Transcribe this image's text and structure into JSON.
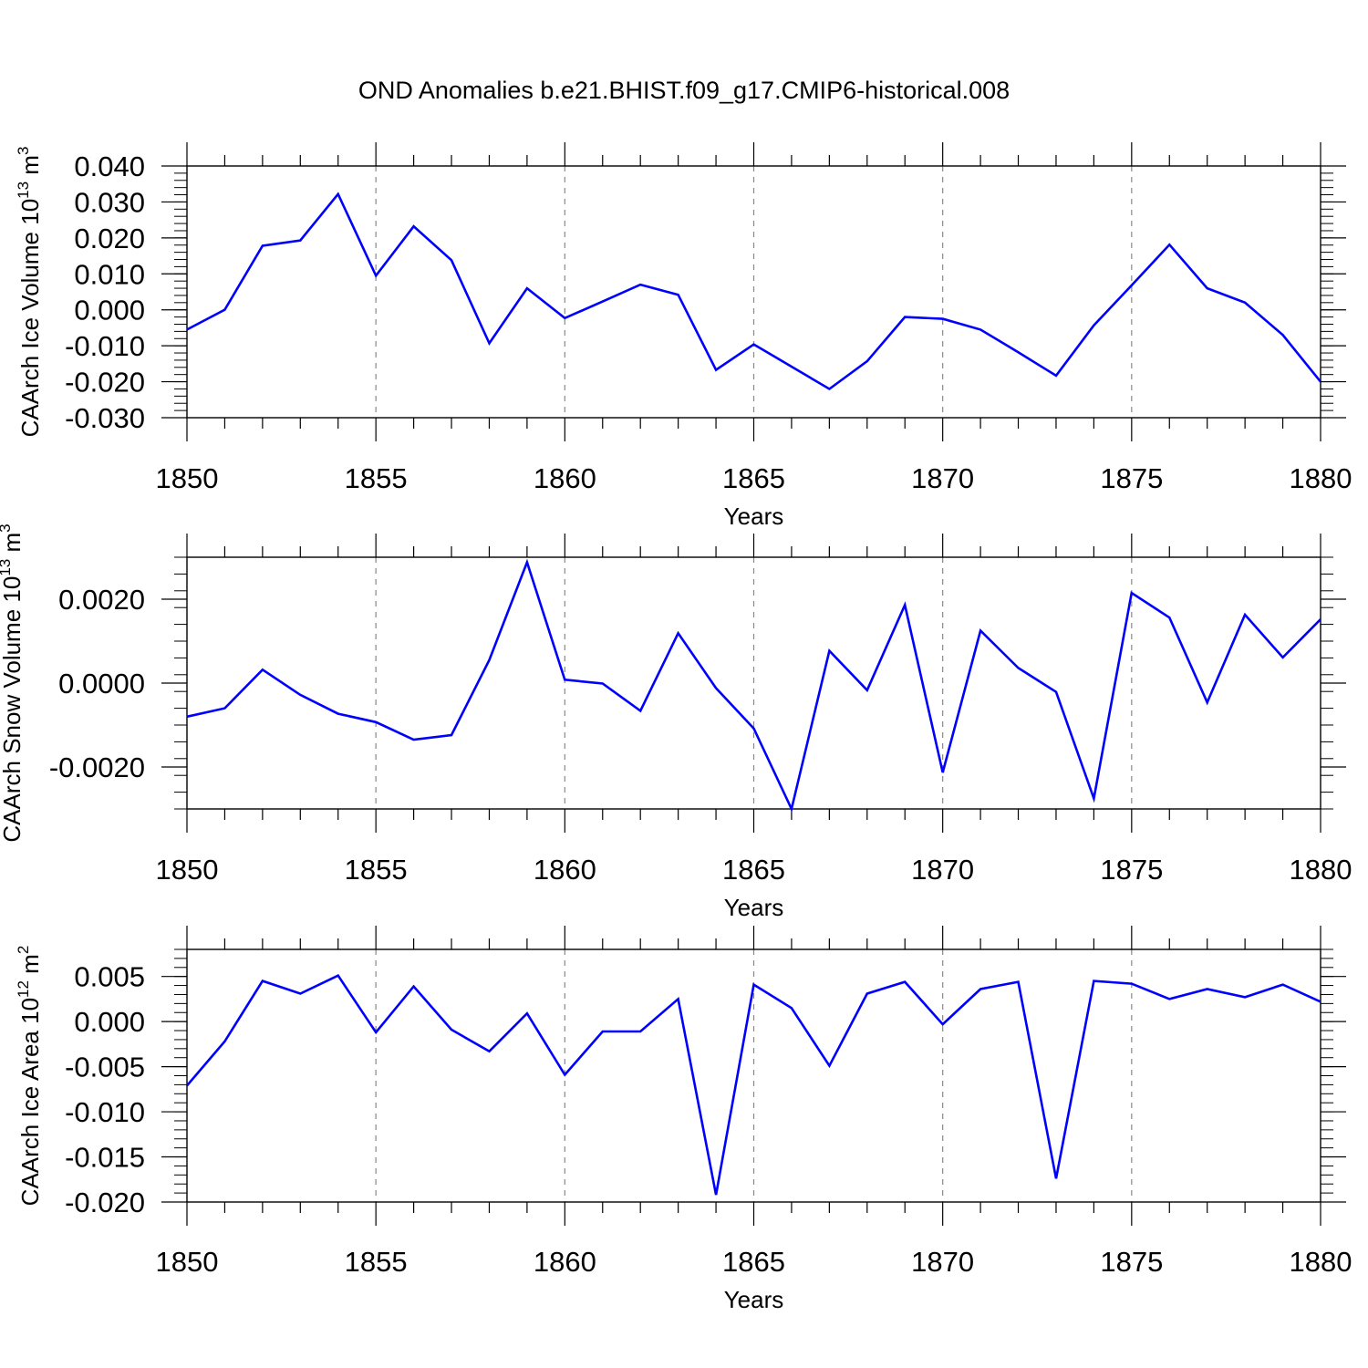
{
  "title": "OND Anomalies b.e21.BHIST.f09_g17.CMIP6-historical.008",
  "colors": {
    "series": "#0000ff",
    "axis": "#000000",
    "grid": "#888888"
  },
  "chart_data": [
    {
      "type": "line",
      "ylabel": {
        "text": "CAArch Ice Volume 10",
        "exp": "13",
        "unit": " m",
        "unit_exp": "3"
      },
      "xlabel": "Years",
      "xlim": [
        1850,
        1880
      ],
      "ylim": [
        -0.03,
        0.04
      ],
      "y_ticks": [
        -0.03,
        -0.02,
        -0.01,
        0.0,
        0.01,
        0.02,
        0.03,
        0.04
      ],
      "y_tick_labels": [
        "-0.030",
        "-0.020",
        "-0.010",
        "0.000",
        "0.010",
        "0.020",
        "0.030",
        "0.040"
      ],
      "x_ticks": [
        1850,
        1855,
        1860,
        1865,
        1870,
        1875,
        1880
      ],
      "x_tick_labels": [
        "1850",
        "1855",
        "1860",
        "1865",
        "1870",
        "1875",
        "1880"
      ],
      "x": [
        1850,
        1851,
        1852,
        1853,
        1854,
        1855,
        1856,
        1857,
        1858,
        1859,
        1860,
        1861,
        1862,
        1863,
        1864,
        1865,
        1866,
        1867,
        1868,
        1869,
        1870,
        1871,
        1872,
        1873,
        1874,
        1875,
        1876,
        1877,
        1878,
        1879,
        1880
      ],
      "y": [
        -0.0055,
        0.0,
        0.0178,
        0.0193,
        0.0322,
        0.0095,
        0.0232,
        0.0138,
        -0.0093,
        0.006,
        -0.0023,
        0.0023,
        0.007,
        0.0042,
        -0.0167,
        -0.0096,
        -0.0158,
        -0.022,
        -0.0143,
        -0.002,
        -0.0025,
        -0.0055,
        -0.0118,
        -0.0183,
        -0.0043,
        0.0068,
        0.0181,
        0.006,
        0.002,
        -0.007,
        -0.02
      ]
    },
    {
      "type": "line",
      "ylabel": {
        "text": "CAArch Snow Volume 10",
        "exp": "13",
        "unit": " m",
        "unit_exp": "3"
      },
      "xlabel": "Years",
      "xlim": [
        1850,
        1880
      ],
      "ylim": [
        -0.003,
        0.003
      ],
      "y_ticks": [
        -0.002,
        0.0,
        0.002
      ],
      "y_tick_labels": [
        "-0.0020",
        "0.0000",
        "0.0020"
      ],
      "x_ticks": [
        1850,
        1855,
        1860,
        1865,
        1870,
        1875,
        1880
      ],
      "x_tick_labels": [
        "1850",
        "1855",
        "1860",
        "1865",
        "1870",
        "1875",
        "1880"
      ],
      "x": [
        1850,
        1851,
        1852,
        1853,
        1854,
        1855,
        1856,
        1857,
        1858,
        1859,
        1860,
        1861,
        1862,
        1863,
        1864,
        1865,
        1866,
        1867,
        1868,
        1869,
        1870,
        1871,
        1872,
        1873,
        1874,
        1875,
        1876,
        1877,
        1878,
        1879,
        1880
      ],
      "y": [
        -0.0008,
        -0.0006,
        0.00032,
        -0.00028,
        -0.00073,
        -0.00093,
        -0.00135,
        -0.00124,
        0.00055,
        0.00288,
        8e-05,
        -1e-05,
        -0.00066,
        0.00119,
        -0.00012,
        -0.00108,
        -0.003,
        0.00077,
        -0.00017,
        0.00186,
        -0.00213,
        0.00125,
        0.00036,
        -0.00021,
        -0.00275,
        0.00215,
        0.00156,
        -0.00046,
        0.00163,
        0.00061,
        0.00152
      ]
    },
    {
      "type": "line",
      "ylabel": {
        "text": "CAArch Ice Area 10",
        "exp": "12",
        "unit": " m",
        "unit_exp": "2"
      },
      "xlabel": "Years",
      "xlim": [
        1850,
        1880
      ],
      "ylim": [
        -0.02,
        0.008
      ],
      "y_ticks": [
        -0.02,
        -0.015,
        -0.01,
        -0.005,
        0.0,
        0.005
      ],
      "y_tick_labels": [
        "-0.020",
        "-0.015",
        "-0.010",
        "-0.005",
        "0.000",
        "0.005"
      ],
      "x_ticks": [
        1850,
        1855,
        1860,
        1865,
        1870,
        1875,
        1880
      ],
      "x_tick_labels": [
        "1850",
        "1855",
        "1860",
        "1865",
        "1870",
        "1875",
        "1880"
      ],
      "x": [
        1850,
        1851,
        1852,
        1853,
        1854,
        1855,
        1856,
        1857,
        1858,
        1859,
        1860,
        1861,
        1862,
        1863,
        1864,
        1865,
        1866,
        1867,
        1868,
        1869,
        1870,
        1871,
        1872,
        1873,
        1874,
        1875,
        1876,
        1877,
        1878,
        1879,
        1880
      ],
      "y": [
        -0.0071,
        -0.0022,
        0.0045,
        0.0031,
        0.0051,
        -0.0012,
        0.0039,
        -0.0009,
        -0.0033,
        0.0009,
        -0.0059,
        -0.0011,
        -0.0011,
        0.0025,
        -0.0192,
        0.0041,
        0.0015,
        -0.0049,
        0.0031,
        0.0044,
        -0.0003,
        0.0036,
        0.0044,
        -0.0174,
        0.0045,
        0.0042,
        0.0025,
        0.0036,
        0.0027,
        0.0041,
        0.0022
      ]
    }
  ]
}
